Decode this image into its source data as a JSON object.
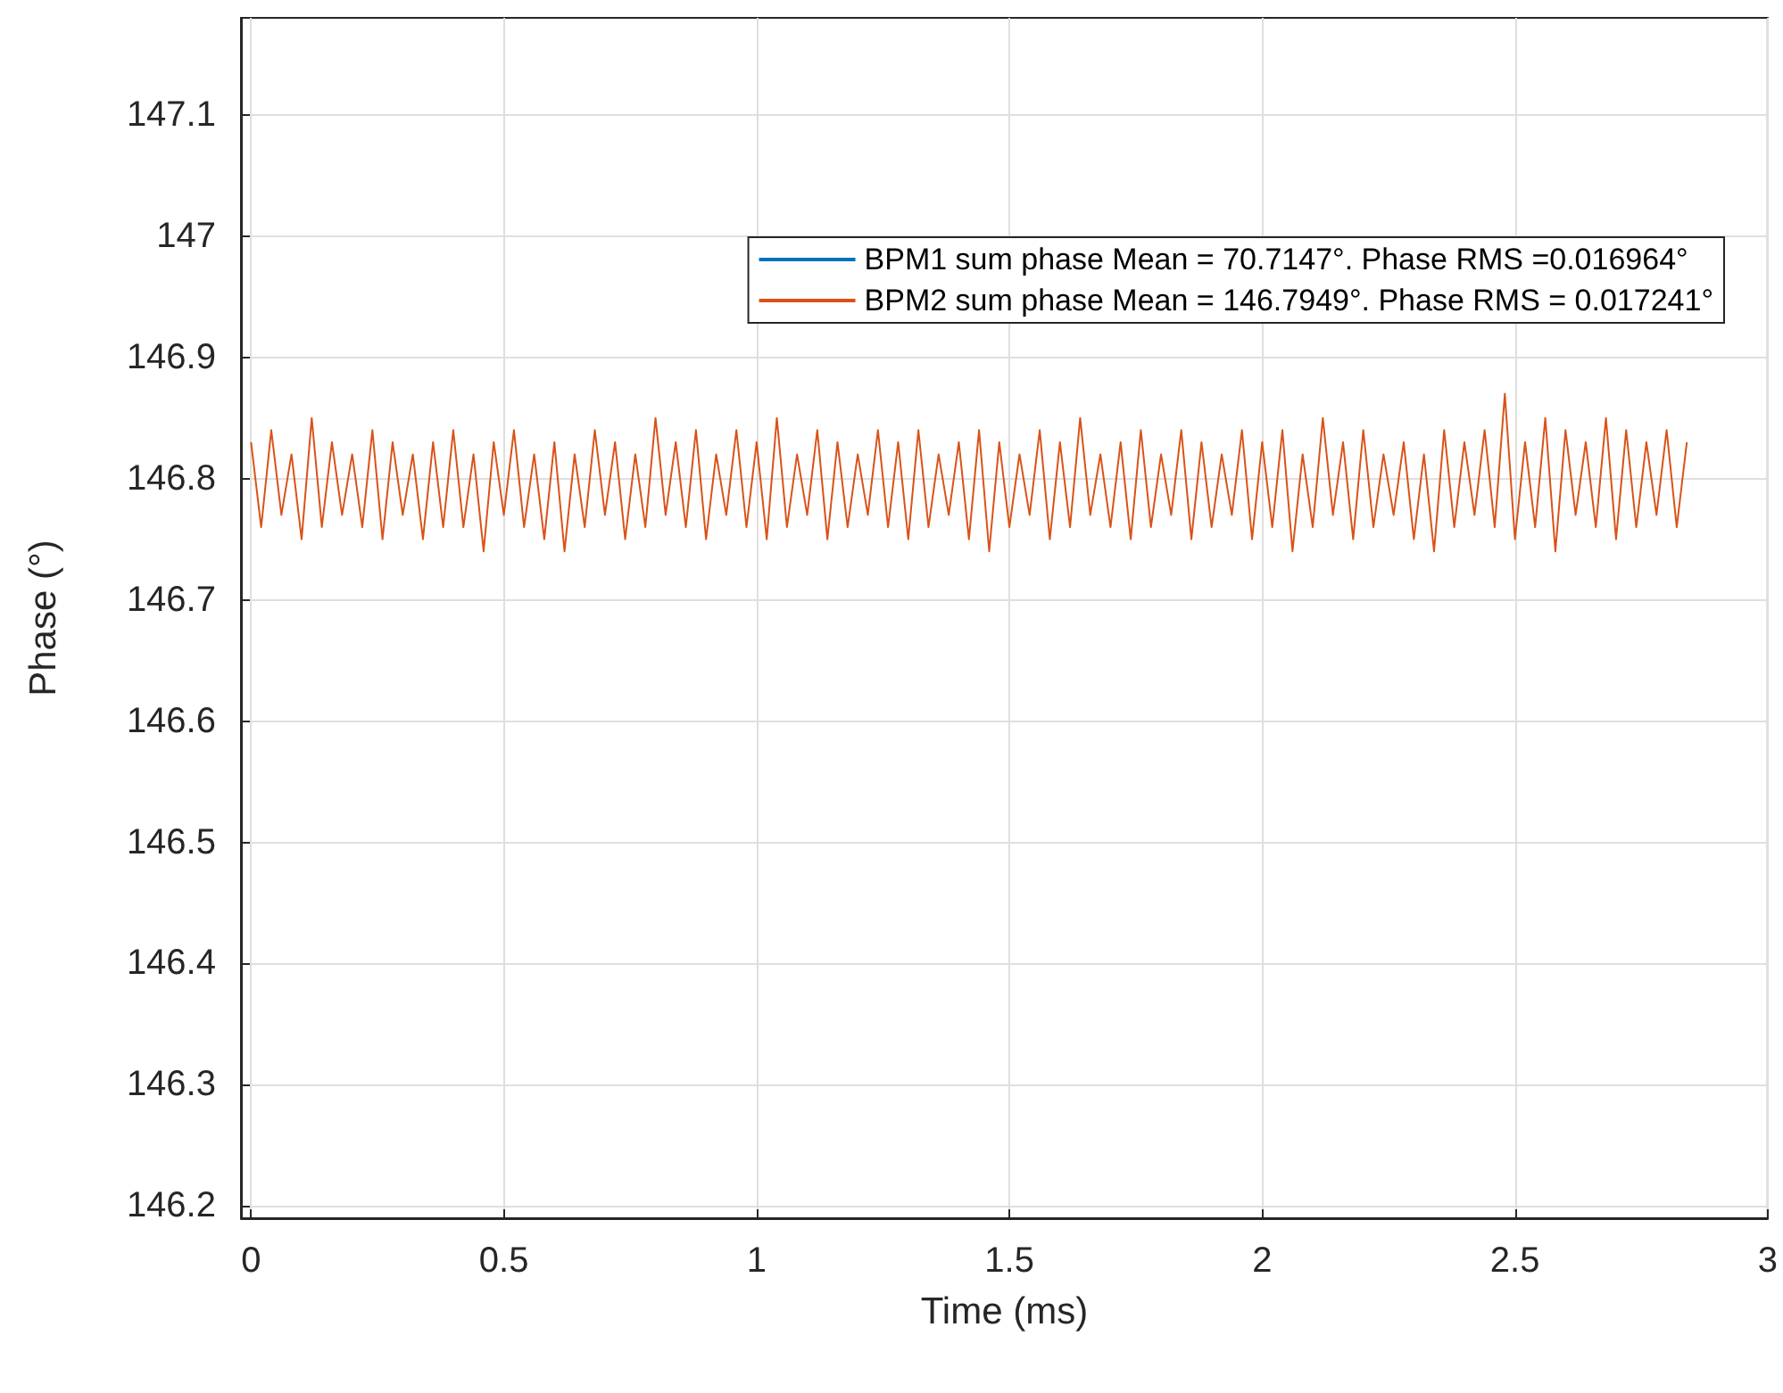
{
  "chart_data": {
    "type": "line",
    "xlabel": "Time (ms)",
    "ylabel": "Phase (°)",
    "xlim": [
      -0.02,
      3.0
    ],
    "xticks": [
      0,
      0.5,
      1,
      1.5,
      2,
      2.5,
      3
    ],
    "ylim": [
      146.19,
      147.18
    ],
    "yticks": [
      146.2,
      146.3,
      146.4,
      146.5,
      146.6,
      146.7,
      146.8,
      146.9,
      147,
      147.1
    ],
    "grid": true,
    "legend": "top right",
    "marker": "none",
    "line_style": "solid",
    "x": [
      0,
      0.02,
      0.04,
      0.06,
      0.08,
      0.1,
      0.12,
      0.14,
      0.16,
      0.18,
      0.2,
      0.22,
      0.24,
      0.26,
      0.28,
      0.3,
      0.32,
      0.34,
      0.36,
      0.38,
      0.4,
      0.42,
      0.44,
      0.46,
      0.48,
      0.5,
      0.52,
      0.54,
      0.56,
      0.58,
      0.6,
      0.62,
      0.64,
      0.66,
      0.68,
      0.7,
      0.72,
      0.74,
      0.76,
      0.78,
      0.8,
      0.82,
      0.84,
      0.86,
      0.88,
      0.9,
      0.92,
      0.94,
      0.96,
      0.98,
      1,
      1.02,
      1.04,
      1.06,
      1.08,
      1.1,
      1.12,
      1.14,
      1.16,
      1.18,
      1.2,
      1.22,
      1.24,
      1.26,
      1.28,
      1.3,
      1.32,
      1.34,
      1.36,
      1.38,
      1.4,
      1.42,
      1.44,
      1.46,
      1.48,
      1.5,
      1.52,
      1.54,
      1.56,
      1.58,
      1.6,
      1.62,
      1.64,
      1.66,
      1.68,
      1.7,
      1.72,
      1.74,
      1.76,
      1.78,
      1.8,
      1.82,
      1.84,
      1.86,
      1.88,
      1.9,
      1.92,
      1.94,
      1.96,
      1.98,
      2,
      2.02,
      2.04,
      2.06,
      2.08,
      2.1,
      2.12,
      2.14,
      2.16,
      2.18,
      2.2,
      2.22,
      2.24,
      2.26,
      2.28,
      2.3,
      2.32,
      2.34,
      2.36,
      2.38,
      2.4,
      2.42,
      2.44,
      2.46,
      2.48,
      2.5,
      2.52,
      2.54,
      2.56,
      2.58,
      2.6,
      2.62,
      2.64,
      2.66,
      2.68,
      2.7,
      2.72,
      2.74,
      2.76,
      2.78,
      2.8,
      2.82,
      2.84
    ],
    "series": [
      {
        "name": "BPM1 sum phase Mean = 70.7147°. Phase RMS =0.016964°",
        "color": "#0072bd",
        "values": [
          null,
          null,
          null,
          null,
          null,
          null,
          null,
          null,
          null,
          null,
          null,
          null,
          null,
          null,
          null,
          null,
          null,
          null,
          null,
          null,
          null,
          null,
          null,
          null,
          null,
          null,
          null,
          null,
          null,
          null,
          null,
          null,
          null,
          null,
          null,
          null,
          null,
          null,
          null,
          null,
          null,
          null,
          null,
          null,
          null,
          null,
          null,
          null,
          null,
          null,
          null,
          null,
          null,
          null,
          null,
          null,
          null,
          null,
          null,
          null,
          null,
          null,
          null,
          null,
          null,
          null,
          null,
          null,
          null,
          null,
          null,
          null,
          null,
          null,
          null,
          null,
          null,
          null,
          null,
          null,
          null,
          null,
          null,
          null,
          null,
          null,
          null,
          null,
          null,
          null,
          null,
          null,
          null,
          null,
          null,
          null,
          null,
          null,
          null,
          null,
          null,
          null,
          null,
          null,
          null,
          null,
          null,
          null,
          null,
          null,
          null,
          null,
          null,
          null,
          null,
          null,
          null,
          null,
          null,
          null,
          null,
          null,
          null,
          null,
          null,
          null,
          null,
          null,
          null,
          null,
          null,
          null,
          null,
          null,
          null,
          null,
          null,
          null,
          null,
          null,
          null,
          null,
          null
        ]
      },
      {
        "name": "BPM2 sum phase Mean = 146.7949°. Phase RMS = 0.017241°",
        "color": "#d95319",
        "values": [
          146.83,
          146.76,
          146.84,
          146.77,
          146.82,
          146.75,
          146.85,
          146.76,
          146.83,
          146.77,
          146.82,
          146.76,
          146.84,
          146.75,
          146.83,
          146.77,
          146.82,
          146.75,
          146.83,
          146.76,
          146.84,
          146.76,
          146.82,
          146.74,
          146.83,
          146.77,
          146.84,
          146.76,
          146.82,
          146.75,
          146.83,
          146.74,
          146.82,
          146.76,
          146.84,
          146.77,
          146.83,
          146.75,
          146.82,
          146.76,
          146.85,
          146.77,
          146.83,
          146.76,
          146.84,
          146.75,
          146.82,
          146.77,
          146.84,
          146.76,
          146.83,
          146.75,
          146.85,
          146.76,
          146.82,
          146.77,
          146.84,
          146.75,
          146.83,
          146.76,
          146.82,
          146.77,
          146.84,
          146.76,
          146.83,
          146.75,
          146.84,
          146.76,
          146.82,
          146.77,
          146.83,
          146.75,
          146.84,
          146.74,
          146.83,
          146.76,
          146.82,
          146.77,
          146.84,
          146.75,
          146.83,
          146.76,
          146.85,
          146.77,
          146.82,
          146.76,
          146.83,
          146.75,
          146.84,
          146.76,
          146.82,
          146.77,
          146.84,
          146.75,
          146.83,
          146.76,
          146.82,
          146.77,
          146.84,
          146.75,
          146.83,
          146.76,
          146.84,
          146.74,
          146.82,
          146.76,
          146.85,
          146.77,
          146.83,
          146.75,
          146.84,
          146.76,
          146.82,
          146.77,
          146.83,
          146.75,
          146.82,
          146.74,
          146.84,
          146.76,
          146.83,
          146.77,
          146.84,
          146.76,
          146.87,
          146.75,
          146.83,
          146.76,
          146.85,
          146.74,
          146.84,
          146.77,
          146.83,
          146.76,
          146.85,
          146.75,
          146.84,
          146.76,
          146.83,
          146.77,
          146.84,
          146.76,
          146.83
        ]
      }
    ]
  }
}
